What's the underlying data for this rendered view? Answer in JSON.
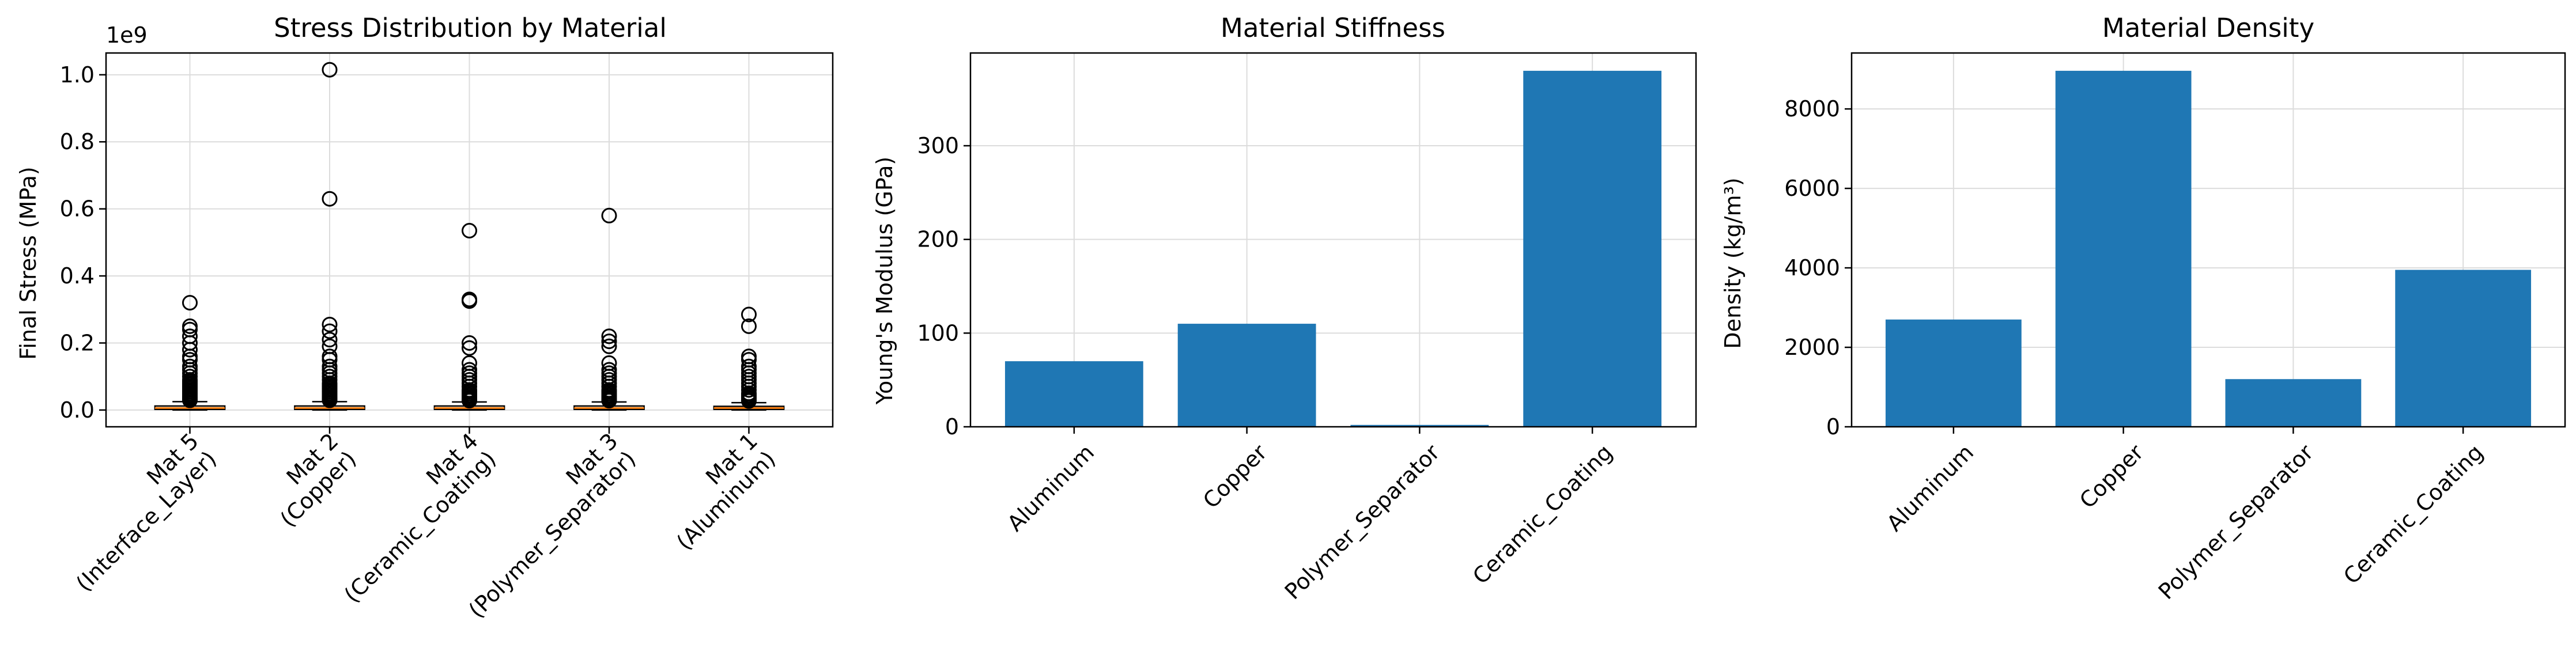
{
  "chart_data": [
    {
      "type": "box",
      "title": "Stress Distribution by Material",
      "xlabel": "",
      "ylabel": "Final Stress (MPa)",
      "y_offset_text": "1e9",
      "ylim": [
        -0.05,
        1.065
      ],
      "yticks": [
        0.0,
        0.2,
        0.4,
        0.6,
        0.8,
        1.0
      ],
      "ytick_labels": [
        "0.0",
        "0.2",
        "0.4",
        "0.6",
        "0.8",
        "1.0"
      ],
      "grid": true,
      "categories": [
        [
          "Mat 5",
          "(Interface_Layer)"
        ],
        [
          "Mat 2",
          "(Copper)"
        ],
        [
          "Mat 4",
          "(Ceramic_Coating)"
        ],
        [
          "Mat 3",
          "(Polymer_Separator)"
        ],
        [
          "Mat 1",
          "(Aluminum)"
        ]
      ],
      "boxes": [
        {
          "whislo": 0.0,
          "q1": 0.002,
          "med": 0.006,
          "q3": 0.012,
          "whishi": 0.025,
          "fliers": [
            0.32,
            0.25,
            0.24,
            0.22,
            0.2,
            0.18,
            0.16,
            0.15,
            0.13,
            0.12,
            0.11,
            0.1,
            0.09,
            0.085,
            0.08,
            0.075,
            0.07,
            0.065,
            0.06,
            0.055,
            0.05,
            0.045,
            0.04,
            0.036,
            0.032,
            0.029
          ]
        },
        {
          "whislo": 0.0,
          "q1": 0.002,
          "med": 0.006,
          "q3": 0.012,
          "whishi": 0.025,
          "fliers": [
            1.015,
            0.63,
            0.255,
            0.235,
            0.21,
            0.19,
            0.16,
            0.15,
            0.13,
            0.12,
            0.11,
            0.1,
            0.09,
            0.08,
            0.075,
            0.07,
            0.065,
            0.06,
            0.055,
            0.05,
            0.045,
            0.04,
            0.036,
            0.032,
            0.029
          ]
        },
        {
          "whislo": 0.0,
          "q1": 0.002,
          "med": 0.006,
          "q3": 0.012,
          "whishi": 0.024,
          "fliers": [
            0.535,
            0.33,
            0.325,
            0.2,
            0.185,
            0.14,
            0.12,
            0.11,
            0.1,
            0.09,
            0.08,
            0.07,
            0.06,
            0.055,
            0.05,
            0.045,
            0.04,
            0.035,
            0.031,
            0.028
          ]
        },
        {
          "whislo": 0.0,
          "q1": 0.002,
          "med": 0.006,
          "q3": 0.012,
          "whishi": 0.024,
          "fliers": [
            0.58,
            0.22,
            0.205,
            0.19,
            0.14,
            0.12,
            0.11,
            0.1,
            0.09,
            0.08,
            0.07,
            0.06,
            0.055,
            0.05,
            0.045,
            0.04,
            0.035,
            0.031,
            0.028
          ]
        },
        {
          "whislo": 0.0,
          "q1": 0.002,
          "med": 0.006,
          "q3": 0.011,
          "whishi": 0.022,
          "fliers": [
            0.285,
            0.25,
            0.16,
            0.15,
            0.13,
            0.12,
            0.11,
            0.1,
            0.09,
            0.08,
            0.07,
            0.06,
            0.05,
            0.045,
            0.04,
            0.035,
            0.03,
            0.027
          ]
        }
      ],
      "colors": {
        "box_edge": "#000000",
        "median": "#ff7f0e",
        "flier": "#000000"
      }
    },
    {
      "type": "bar",
      "title": "Material Stiffness",
      "xlabel": "",
      "ylabel": "Young's Modulus (GPa)",
      "categories": [
        "Aluminum",
        "Copper",
        "Polymer_Separator",
        "Ceramic_Coating"
      ],
      "values": [
        70,
        110,
        2,
        380
      ],
      "ylim": [
        0,
        399
      ],
      "yticks": [
        0,
        100,
        200,
        300
      ],
      "ytick_labels": [
        "0",
        "100",
        "200",
        "300"
      ],
      "grid": true,
      "colors": {
        "bar": "#1f77b4"
      }
    },
    {
      "type": "bar",
      "title": "Material Density",
      "xlabel": "",
      "ylabel": "Density (kg/m³)",
      "categories": [
        "Aluminum",
        "Copper",
        "Polymer_Separator",
        "Ceramic_Coating"
      ],
      "values": [
        2700,
        8960,
        1200,
        3950
      ],
      "ylim": [
        0,
        9408
      ],
      "yticks": [
        0,
        2000,
        4000,
        6000,
        8000
      ],
      "ytick_labels": [
        "0",
        "2000",
        "4000",
        "6000",
        "8000"
      ],
      "grid": true,
      "colors": {
        "bar": "#1f77b4"
      }
    }
  ]
}
